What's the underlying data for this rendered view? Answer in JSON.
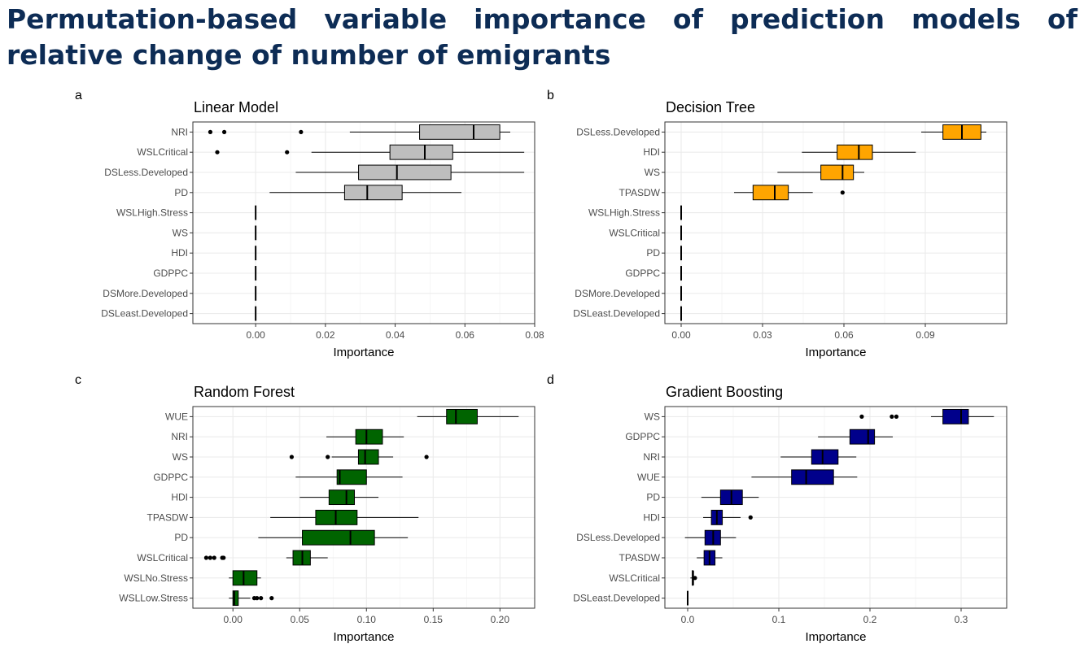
{
  "page": {
    "title": "Permutation-based variable importance of prediction models of relative change of number of emigrants"
  },
  "colors": {
    "title": "#0d2c55",
    "linear": "#bebebe",
    "tree": "#ffa500",
    "forest": "#006400",
    "boosting": "#00008b"
  },
  "chart_data": [
    {
      "panel_label": "a",
      "title": "Linear Model",
      "type": "boxplot",
      "orientation": "horizontal",
      "xlabel": "Importance",
      "xlim": [
        -0.018,
        0.08
      ],
      "xticks": [
        0.0,
        0.02,
        0.04,
        0.06,
        0.08
      ],
      "xtick_labels": [
        "0.00",
        "0.02",
        "0.04",
        "0.06",
        "0.08"
      ],
      "fill": "#bebebe",
      "grid": true,
      "categories": [
        "NRI",
        "WSLCritical",
        "DSLess.Developed",
        "PD",
        "WSLHigh.Stress",
        "WS",
        "HDI",
        "GDPPC",
        "DSMore.Developed",
        "DSLeast.Developed"
      ],
      "boxes": [
        {
          "name": "NRI",
          "whisker_low": 0.027,
          "q1": 0.047,
          "median": 0.0625,
          "q3": 0.07,
          "whisker_high": 0.073,
          "outliers": [
            -0.013,
            -0.009,
            0.013
          ]
        },
        {
          "name": "WSLCritical",
          "whisker_low": 0.016,
          "q1": 0.0385,
          "median": 0.0485,
          "q3": 0.0565,
          "whisker_high": 0.077,
          "outliers": [
            -0.011,
            0.009
          ]
        },
        {
          "name": "DSLess.Developed",
          "whisker_low": 0.0115,
          "q1": 0.0295,
          "median": 0.0405,
          "q3": 0.056,
          "whisker_high": 0.077,
          "outliers": []
        },
        {
          "name": "PD",
          "whisker_low": 0.004,
          "q1": 0.0255,
          "median": 0.032,
          "q3": 0.042,
          "whisker_high": 0.059,
          "outliers": []
        },
        {
          "name": "WSLHigh.Stress",
          "whisker_low": 0,
          "q1": 0,
          "median": 0,
          "q3": 0,
          "whisker_high": 0,
          "outliers": []
        },
        {
          "name": "WS",
          "whisker_low": 0,
          "q1": 0,
          "median": 0,
          "q3": 0,
          "whisker_high": 0,
          "outliers": []
        },
        {
          "name": "HDI",
          "whisker_low": 0,
          "q1": 0,
          "median": 0,
          "q3": 0,
          "whisker_high": 0,
          "outliers": []
        },
        {
          "name": "GDPPC",
          "whisker_low": 0,
          "q1": 0,
          "median": 0,
          "q3": 0,
          "whisker_high": 0,
          "outliers": []
        },
        {
          "name": "DSMore.Developed",
          "whisker_low": 0,
          "q1": 0,
          "median": 0,
          "q3": 0,
          "whisker_high": 0,
          "outliers": []
        },
        {
          "name": "DSLeast.Developed",
          "whisker_low": 0,
          "q1": 0,
          "median": 0,
          "q3": 0,
          "whisker_high": 0,
          "outliers": []
        }
      ]
    },
    {
      "panel_label": "b",
      "title": "Decision Tree",
      "type": "boxplot",
      "orientation": "horizontal",
      "xlabel": "Importance",
      "xlim": [
        -0.006,
        0.12
      ],
      "xticks": [
        0.0,
        0.03,
        0.06,
        0.09
      ],
      "xtick_labels": [
        "0.00",
        "0.03",
        "0.06",
        "0.09"
      ],
      "fill": "#ffa500",
      "grid": true,
      "categories": [
        "DSLess.Developed",
        "HDI",
        "WS",
        "TPASDW",
        "WSLHigh.Stress",
        "WSLCritical",
        "PD",
        "GDPPC",
        "DSMore.Developed",
        "DSLeast.Developed"
      ],
      "boxes": [
        {
          "name": "DSLess.Developed",
          "whisker_low": 0.0885,
          "q1": 0.0965,
          "median": 0.1035,
          "q3": 0.1105,
          "whisker_high": 0.1125,
          "outliers": []
        },
        {
          "name": "HDI",
          "whisker_low": 0.0445,
          "q1": 0.0575,
          "median": 0.0655,
          "q3": 0.0705,
          "whisker_high": 0.0865,
          "outliers": []
        },
        {
          "name": "WS",
          "whisker_low": 0.0355,
          "q1": 0.0515,
          "median": 0.0595,
          "q3": 0.0635,
          "whisker_high": 0.0675,
          "outliers": []
        },
        {
          "name": "TPASDW",
          "whisker_low": 0.0195,
          "q1": 0.0265,
          "median": 0.0345,
          "q3": 0.0395,
          "whisker_high": 0.0485,
          "outliers": [
            0.0595
          ]
        },
        {
          "name": "WSLHigh.Stress",
          "whisker_low": 0,
          "q1": 0,
          "median": 0,
          "q3": 0,
          "whisker_high": 0,
          "outliers": []
        },
        {
          "name": "WSLCritical",
          "whisker_low": 0,
          "q1": 0,
          "median": 0,
          "q3": 0,
          "whisker_high": 0,
          "outliers": []
        },
        {
          "name": "PD",
          "whisker_low": 0,
          "q1": 0,
          "median": 0,
          "q3": 0,
          "whisker_high": 0,
          "outliers": []
        },
        {
          "name": "GDPPC",
          "whisker_low": 0,
          "q1": 0,
          "median": 0,
          "q3": 0,
          "whisker_high": 0,
          "outliers": []
        },
        {
          "name": "DSMore.Developed",
          "whisker_low": 0,
          "q1": 0,
          "median": 0,
          "q3": 0,
          "whisker_high": 0,
          "outliers": []
        },
        {
          "name": "DSLeast.Developed",
          "whisker_low": 0,
          "q1": 0,
          "median": 0,
          "q3": 0,
          "whisker_high": 0,
          "outliers": []
        }
      ]
    },
    {
      "panel_label": "c",
      "title": "Random Forest",
      "type": "boxplot",
      "orientation": "horizontal",
      "xlabel": "Importance",
      "xlim": [
        -0.03,
        0.226
      ],
      "xticks": [
        0.0,
        0.05,
        0.1,
        0.15,
        0.2
      ],
      "xtick_labels": [
        "0.00",
        "0.05",
        "0.10",
        "0.15",
        "0.20"
      ],
      "fill": "#006400",
      "grid": true,
      "categories": [
        "WUE",
        "NRI",
        "WS",
        "GDPPC",
        "HDI",
        "TPASDW",
        "PD",
        "WSLCritical",
        "WSLNo.Stress",
        "WSLLow.Stress"
      ],
      "boxes": [
        {
          "name": "WUE",
          "whisker_low": 0.138,
          "q1": 0.16,
          "median": 0.167,
          "q3": 0.183,
          "whisker_high": 0.214,
          "outliers": []
        },
        {
          "name": "NRI",
          "whisker_low": 0.07,
          "q1": 0.092,
          "median": 0.1,
          "q3": 0.112,
          "whisker_high": 0.128,
          "outliers": []
        },
        {
          "name": "WS",
          "whisker_low": 0.074,
          "q1": 0.094,
          "median": 0.099,
          "q3": 0.109,
          "whisker_high": 0.12,
          "outliers": [
            0.044,
            0.071,
            0.145
          ]
        },
        {
          "name": "GDPPC",
          "whisker_low": 0.047,
          "q1": 0.078,
          "median": 0.08,
          "q3": 0.1,
          "whisker_high": 0.127,
          "outliers": []
        },
        {
          "name": "HDI",
          "whisker_low": 0.05,
          "q1": 0.072,
          "median": 0.085,
          "q3": 0.091,
          "whisker_high": 0.109,
          "outliers": []
        },
        {
          "name": "TPASDW",
          "whisker_low": 0.028,
          "q1": 0.062,
          "median": 0.077,
          "q3": 0.093,
          "whisker_high": 0.139,
          "outliers": []
        },
        {
          "name": "PD",
          "whisker_low": 0.019,
          "q1": 0.052,
          "median": 0.088,
          "q3": 0.106,
          "whisker_high": 0.131,
          "outliers": []
        },
        {
          "name": "WSLCritical",
          "whisker_low": 0.04,
          "q1": 0.045,
          "median": 0.052,
          "q3": 0.058,
          "whisker_high": 0.071,
          "outliers": [
            -0.02,
            -0.017,
            -0.014,
            -0.008,
            -0.007
          ]
        },
        {
          "name": "WSLNo.Stress",
          "whisker_low": -0.003,
          "q1": 0.0,
          "median": 0.008,
          "q3": 0.018,
          "whisker_high": 0.021,
          "outliers": []
        },
        {
          "name": "WSLLow.Stress",
          "whisker_low": -0.003,
          "q1": 0.0,
          "median": 0.001,
          "q3": 0.004,
          "whisker_high": 0.013,
          "outliers": [
            0.016,
            0.018,
            0.021,
            0.029
          ]
        }
      ]
    },
    {
      "panel_label": "d",
      "title": "Gradient Boosting",
      "type": "boxplot",
      "orientation": "horizontal",
      "xlabel": "Importance",
      "xlim": [
        -0.025,
        0.35
      ],
      "xticks": [
        0.0,
        0.1,
        0.2,
        0.3
      ],
      "xtick_labels": [
        "0.0",
        "0.1",
        "0.2",
        "0.3"
      ],
      "fill": "#00008b",
      "grid": true,
      "categories": [
        "WS",
        "GDPPC",
        "NRI",
        "WUE",
        "PD",
        "HDI",
        "DSLess.Developed",
        "TPASDW",
        "WSLCritical",
        "DSLeast.Developed"
      ],
      "boxes": [
        {
          "name": "WS",
          "whisker_low": 0.267,
          "q1": 0.28,
          "median": 0.3,
          "q3": 0.308,
          "whisker_high": 0.336,
          "outliers": [
            0.191,
            0.224,
            0.229
          ]
        },
        {
          "name": "GDPPC",
          "whisker_low": 0.143,
          "q1": 0.178,
          "median": 0.198,
          "q3": 0.205,
          "whisker_high": 0.225,
          "outliers": []
        },
        {
          "name": "NRI",
          "whisker_low": 0.102,
          "q1": 0.136,
          "median": 0.148,
          "q3": 0.165,
          "whisker_high": 0.185,
          "outliers": []
        },
        {
          "name": "WUE",
          "whisker_low": 0.07,
          "q1": 0.114,
          "median": 0.13,
          "q3": 0.16,
          "whisker_high": 0.186,
          "outliers": []
        },
        {
          "name": "PD",
          "whisker_low": 0.015,
          "q1": 0.036,
          "median": 0.048,
          "q3": 0.06,
          "whisker_high": 0.078,
          "outliers": []
        },
        {
          "name": "HDI",
          "whisker_low": 0.017,
          "q1": 0.026,
          "median": 0.032,
          "q3": 0.038,
          "whisker_high": 0.058,
          "outliers": [
            0.069
          ]
        },
        {
          "name": "DSLess.Developed",
          "whisker_low": -0.003,
          "q1": 0.019,
          "median": 0.028,
          "q3": 0.036,
          "whisker_high": 0.053,
          "outliers": []
        },
        {
          "name": "TPASDW",
          "whisker_low": 0.01,
          "q1": 0.018,
          "median": 0.024,
          "q3": 0.03,
          "whisker_high": 0.038,
          "outliers": []
        },
        {
          "name": "WSLCritical",
          "whisker_low": 0.003,
          "q1": 0.005,
          "median": 0.006,
          "q3": 0.006,
          "whisker_high": 0.007,
          "outliers": [
            0.008
          ]
        },
        {
          "name": "DSLeast.Developed",
          "whisker_low": 0,
          "q1": 0,
          "median": 0,
          "q3": 0,
          "whisker_high": 0,
          "outliers": []
        }
      ]
    }
  ]
}
